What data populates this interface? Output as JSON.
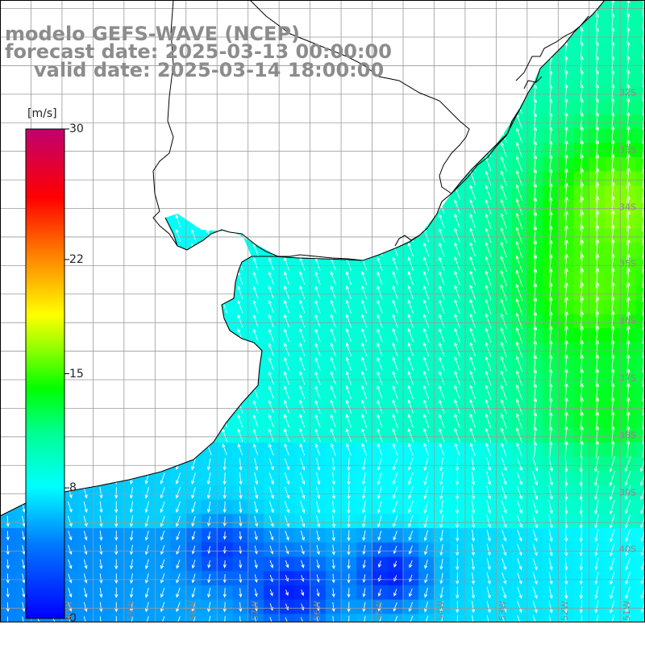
{
  "title": {
    "model": "modelo GEFS-WAVE (NCEP)",
    "forecast": "forecast date: 2025-03-13 00:00:00",
    "valid": "valid date: 2025-03-14 18:00:00"
  },
  "colorbar": {
    "units": "[m/s]",
    "ticks": [
      {
        "value": 30,
        "label": "30"
      },
      {
        "value": 22,
        "label": "22"
      },
      {
        "value": 15,
        "label": "15"
      },
      {
        "value": 8,
        "label": "8"
      },
      {
        "value": 0,
        "label": "0"
      }
    ],
    "min": 0,
    "max": 30,
    "colors": [
      "#0000ff",
      "#0080ff",
      "#00ffff",
      "#00ff80",
      "#00ff00",
      "#80ff00",
      "#ffff00",
      "#ff8000",
      "#ff0000",
      "#c00060"
    ]
  },
  "map": {
    "lon_range": [
      -61,
      -50.6
    ],
    "lat_range": [
      -41.25,
      -30.35
    ],
    "land_color": "#ffffff",
    "coast_color": "#000000",
    "grid_color": "#9a9a9a",
    "arrow_color": "#ffffff",
    "lat_labels": [
      {
        "lat": -32,
        "label": "32S"
      },
      {
        "lat": -33,
        "label": "33S"
      },
      {
        "lat": -34,
        "label": "34S"
      },
      {
        "lat": -35,
        "label": "35S"
      },
      {
        "lat": -36,
        "label": "36S"
      },
      {
        "lat": -37,
        "label": "37S"
      },
      {
        "lat": -38,
        "label": "38S"
      },
      {
        "lat": -39,
        "label": "39S"
      },
      {
        "lat": -40,
        "label": "40S"
      }
    ],
    "lon_labels": [
      {
        "lon": -60,
        "label": "60W"
      },
      {
        "lon": -59,
        "label": "59W"
      },
      {
        "lon": -58,
        "label": "58W"
      },
      {
        "lon": -57,
        "label": "57W"
      },
      {
        "lon": -56,
        "label": "56W"
      },
      {
        "lon": -55,
        "label": "55W"
      },
      {
        "lon": -54,
        "label": "54W"
      },
      {
        "lon": -53,
        "label": "53W"
      },
      {
        "lon": -52,
        "label": "52W"
      },
      {
        "lon": -51,
        "label": "51W"
      }
    ],
    "wind_centers": [
      {
        "lon": -51.0,
        "lat": -34.0,
        "speed": 16.5,
        "radius": 1.4
      },
      {
        "lon": -51.4,
        "lat": -35.5,
        "speed": 15.5,
        "radius": 1.3
      },
      {
        "lon": -51.2,
        "lat": -37.5,
        "speed": 13.5,
        "radius": 1.2
      },
      {
        "lon": -56.3,
        "lat": -40.7,
        "speed": 1.0,
        "radius": 0.7
      },
      {
        "lon": -54.7,
        "lat": -40.4,
        "speed": 1.0,
        "radius": 0.6
      },
      {
        "lon": -57.4,
        "lat": -40.0,
        "speed": 2.0,
        "radius": 0.6
      }
    ]
  }
}
